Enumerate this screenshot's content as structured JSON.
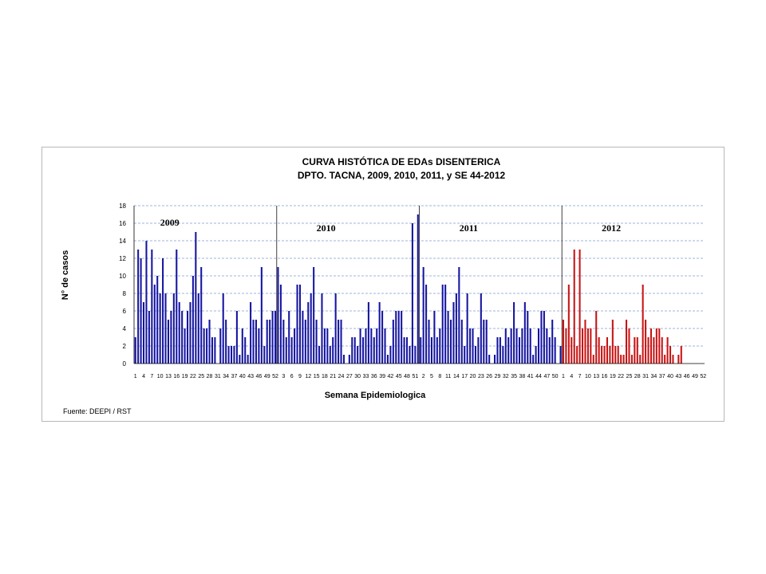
{
  "chart_data": {
    "type": "bar",
    "title": "CURVA HISTÓTICA DE EDAs DISENTERICA",
    "subtitle": "DPTO. TACNA, 2009, 2010, 2011, y SE 44-2012",
    "xlabel": "Semana Epidemiologica",
    "ylabel": "N° de casos",
    "ylim": [
      0,
      18
    ],
    "yticks": [
      0,
      2,
      4,
      6,
      8,
      10,
      12,
      14,
      16,
      18
    ],
    "grid": true,
    "source": "Fuente: DEEPI / RST",
    "colors": {
      "blue": "#1515a0",
      "red": "#c81414",
      "grid": "#7d9fd3",
      "divider": "#404040"
    },
    "series": [
      {
        "year_label": "2009",
        "color": "#1515a0",
        "weeks": [
          1,
          2,
          3,
          4,
          5,
          6,
          7,
          8,
          9,
          10,
          11,
          12,
          13,
          14,
          15,
          16,
          17,
          18,
          19,
          20,
          21,
          22,
          23,
          24,
          25,
          26,
          27,
          28,
          29,
          30,
          31,
          32,
          33,
          34,
          35,
          36,
          37,
          38,
          39,
          40,
          41,
          42,
          43,
          44,
          45,
          46,
          47,
          48,
          49,
          50,
          51,
          52
        ],
        "values": [
          3,
          13,
          12,
          7,
          14,
          6,
          13,
          9,
          10,
          8,
          12,
          8,
          5,
          6,
          8,
          13,
          7,
          6,
          4,
          6,
          7,
          10,
          15,
          8,
          11,
          4,
          4,
          5,
          3,
          3,
          0,
          4,
          8,
          5,
          2,
          2,
          2,
          6,
          1,
          4,
          3,
          1,
          7,
          5,
          5,
          4,
          11,
          2,
          5,
          5,
          6,
          6
        ]
      },
      {
        "year_label": "2010",
        "color": "#1515a0",
        "weeks": [
          1,
          2,
          3,
          4,
          5,
          6,
          7,
          8,
          9,
          10,
          11,
          12,
          13,
          14,
          15,
          16,
          17,
          18,
          19,
          20,
          21,
          22,
          23,
          24,
          25,
          26,
          27,
          28,
          29,
          30,
          31,
          32,
          33,
          34,
          35,
          36,
          37,
          38,
          39,
          40,
          41,
          42,
          43,
          44,
          45,
          46,
          47,
          48,
          49,
          50,
          51,
          52
        ],
        "values": [
          11,
          9,
          5,
          3,
          6,
          3,
          4,
          9,
          9,
          6,
          5,
          7,
          8,
          11,
          5,
          2,
          8,
          4,
          4,
          2,
          3,
          8,
          5,
          5,
          1,
          0,
          1,
          3,
          3,
          2,
          4,
          3,
          4,
          7,
          4,
          3,
          4,
          7,
          6,
          4,
          1,
          2,
          5,
          6,
          6,
          6,
          3,
          3,
          2,
          16,
          2,
          17
        ]
      },
      {
        "year_label": "2011",
        "color": "#1515a0",
        "weeks": [
          1,
          2,
          3,
          4,
          5,
          6,
          7,
          8,
          9,
          10,
          11,
          12,
          13,
          14,
          15,
          16,
          17,
          18,
          19,
          20,
          21,
          22,
          23,
          24,
          25,
          26,
          27,
          28,
          29,
          30,
          31,
          32,
          33,
          34,
          35,
          36,
          37,
          38,
          39,
          40,
          41,
          42,
          43,
          44,
          45,
          46,
          47,
          48,
          49,
          50,
          51,
          52
        ],
        "values": [
          3,
          11,
          9,
          5,
          3,
          6,
          3,
          4,
          9,
          9,
          6,
          5,
          7,
          8,
          11,
          5,
          2,
          8,
          4,
          4,
          2,
          3,
          8,
          5,
          5,
          1,
          0,
          1,
          3,
          3,
          2,
          4,
          3,
          4,
          7,
          4,
          3,
          4,
          7,
          6,
          4,
          1,
          2,
          4,
          6,
          6,
          4,
          3,
          5,
          3,
          0,
          2
        ]
      },
      {
        "year_label": "2012",
        "color": "#c81414",
        "weeks": [
          1,
          2,
          3,
          4,
          5,
          6,
          7,
          8,
          9,
          10,
          11,
          12,
          13,
          14,
          15,
          16,
          17,
          18,
          19,
          20,
          21,
          22,
          23,
          24,
          25,
          26,
          27,
          28,
          29,
          30,
          31,
          32,
          33,
          34,
          35,
          36,
          37,
          38,
          39,
          40,
          41,
          42,
          43,
          44
        ],
        "values": [
          5,
          4,
          9,
          3,
          13,
          2,
          13,
          4,
          5,
          4,
          4,
          1,
          6,
          3,
          2,
          2,
          3,
          2,
          5,
          2,
          2,
          1,
          1,
          5,
          4,
          1,
          3,
          3,
          1,
          9,
          5,
          3,
          4,
          3,
          4,
          4,
          3,
          1,
          3,
          2,
          1,
          0,
          1,
          2
        ]
      }
    ],
    "x_tick_labels": [
      "1",
      "4",
      "7",
      "10",
      "13",
      "16",
      "19",
      "22",
      "25",
      "28",
      "31",
      "34",
      "37",
      "40",
      "43",
      "46",
      "49",
      "52",
      "3",
      "6",
      "9",
      "12",
      "15",
      "18",
      "21",
      "24",
      "27",
      "30",
      "33",
      "36",
      "39",
      "42",
      "45",
      "48",
      "51",
      "2",
      "5",
      "8",
      "11",
      "14",
      "17",
      "20",
      "23",
      "26",
      "29",
      "32",
      "35",
      "38",
      "41",
      "44",
      "47",
      "50",
      "1",
      "4",
      "7",
      "10",
      "13",
      "16",
      "19",
      "22",
      "25",
      "28",
      "31",
      "34",
      "37",
      "40",
      "43",
      "46",
      "49",
      "52"
    ]
  }
}
